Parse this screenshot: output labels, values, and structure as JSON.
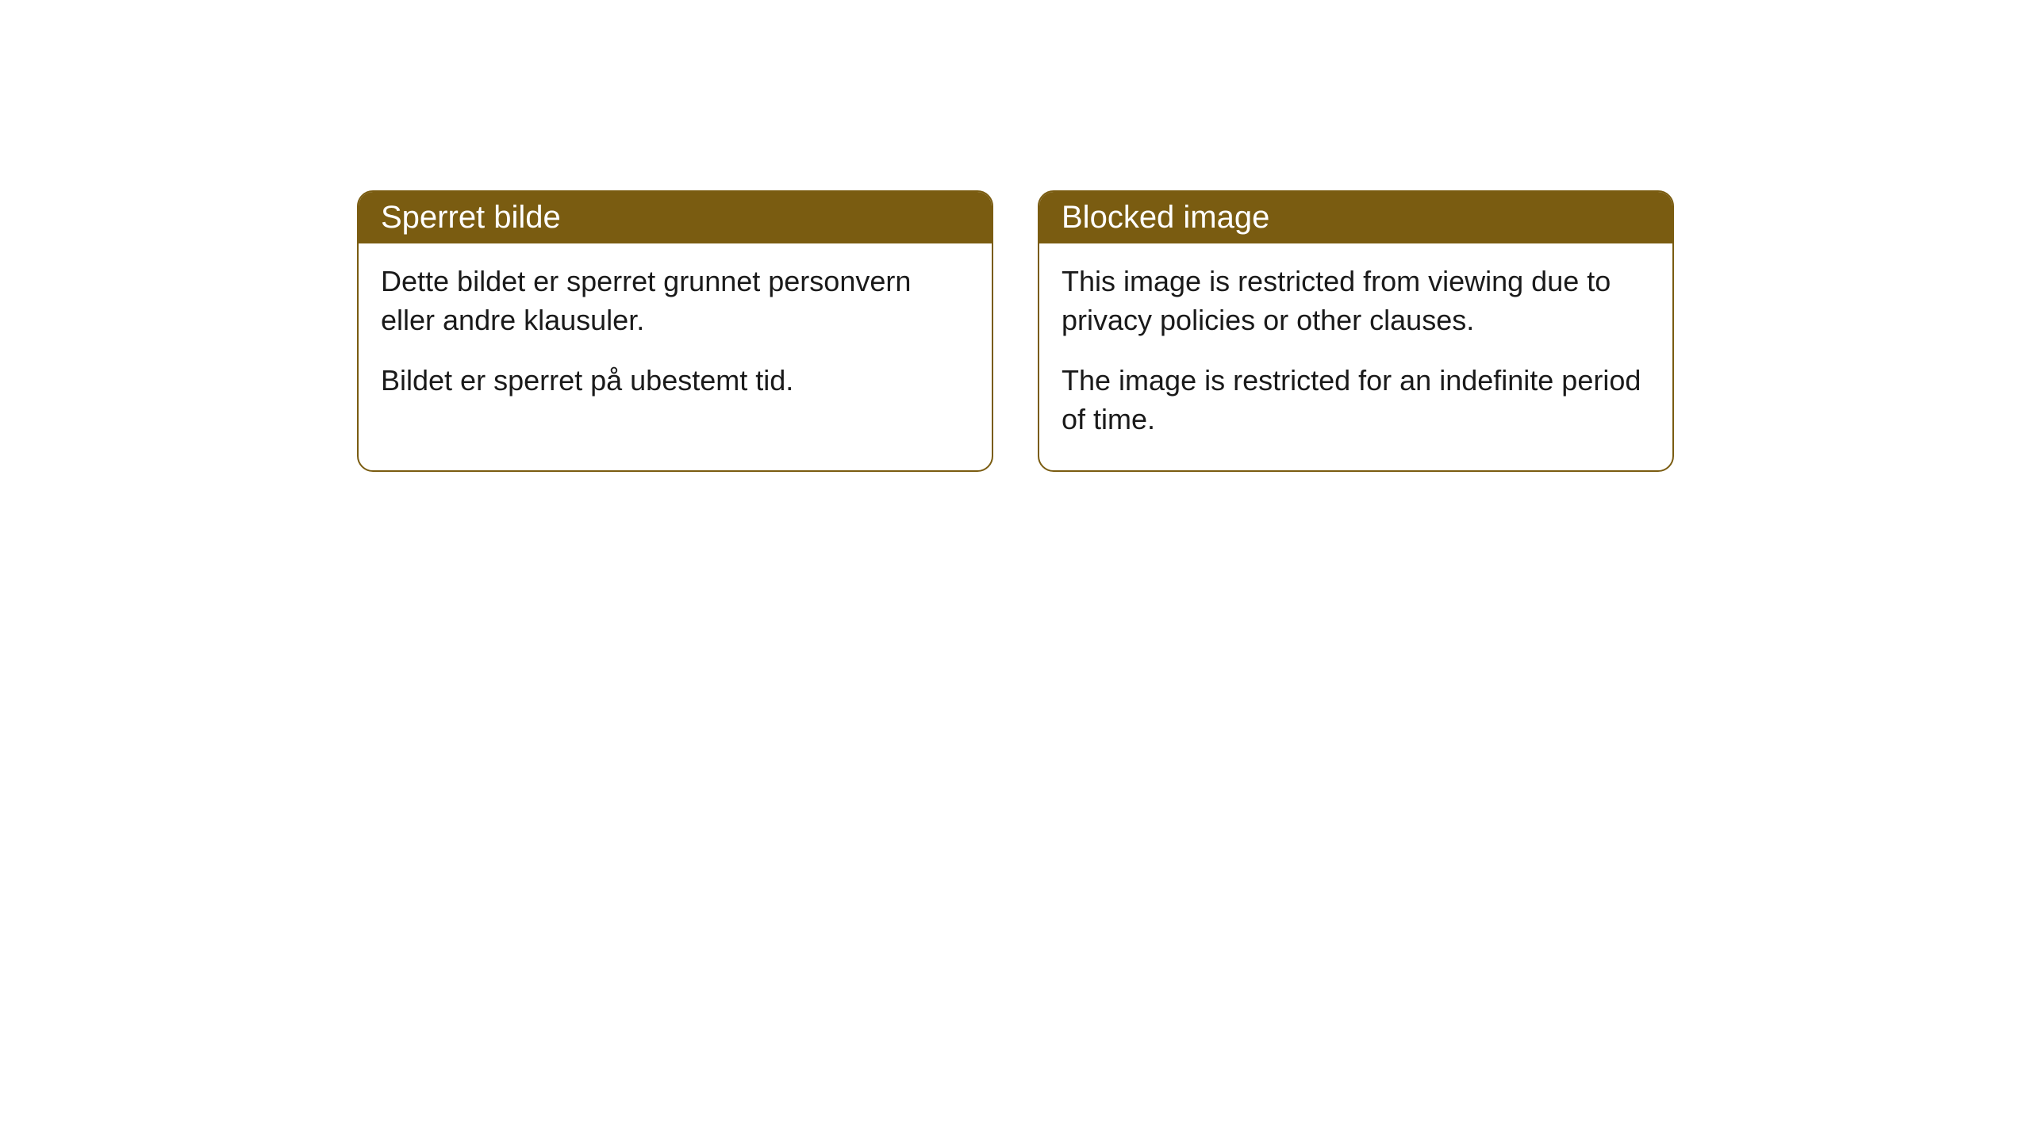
{
  "cards": [
    {
      "title": "Sperret bilde",
      "paragraph1": "Dette bildet er sperret grunnet personvern eller andre klausuler.",
      "paragraph2": "Bildet er sperret på ubestemt tid."
    },
    {
      "title": "Blocked image",
      "paragraph1": "This image is restricted from viewing due to privacy policies or other clauses.",
      "paragraph2": "The image is restricted for an indefinite period of time."
    }
  ],
  "styling": {
    "header_bg_color": "#7a5c11",
    "header_text_color": "#ffffff",
    "border_color": "#7a5c11",
    "body_text_color": "#1a1a1a",
    "card_bg_color": "#ffffff",
    "page_bg_color": "#ffffff",
    "border_radius": 20,
    "header_fontsize": 40,
    "body_fontsize": 36
  }
}
